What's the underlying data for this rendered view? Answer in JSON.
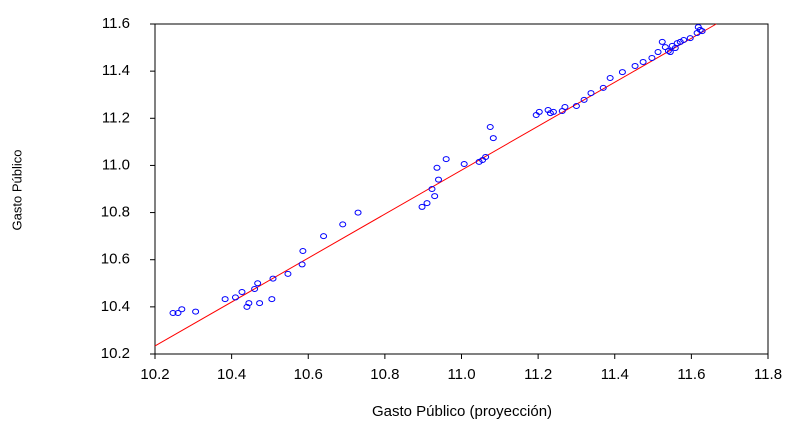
{
  "chart_data": {
    "type": "scatter",
    "x_label": "Gasto Público (proyección)",
    "y_label": "Gasto Público",
    "xlim": [
      10.2,
      11.8
    ],
    "ylim": [
      10.2,
      11.6
    ],
    "xticks": [
      10.2,
      10.4,
      10.6,
      10.8,
      {
        "value": 11,
        "label": "11.0"
      },
      11.2,
      11.4,
      11.6,
      11.8
    ],
    "yticks": [
      10.2,
      10.4,
      10.6,
      10.8,
      {
        "value": 11,
        "label": "11.0"
      },
      11.2,
      11.4,
      11.6
    ],
    "color": "#0000ff",
    "x": [
      10.247,
      10.26,
      10.27,
      10.306,
      10.383,
      10.41,
      10.427,
      10.44,
      10.445,
      10.46,
      10.468,
      10.473,
      10.505,
      10.508,
      10.547,
      10.584,
      10.586,
      10.64,
      10.69,
      10.73,
      10.897,
      10.91,
      10.923,
      10.93,
      10.936,
      10.94,
      10.96,
      11.007,
      11.046,
      11.055,
      11.063,
      11.075,
      11.083,
      11.195,
      11.203,
      11.226,
      11.232,
      11.24,
      11.263,
      11.27,
      11.3,
      11.32,
      11.338,
      11.37,
      11.388,
      11.42,
      11.453,
      11.474,
      11.497,
      11.513,
      11.524,
      11.532,
      11.54,
      11.545,
      11.55,
      11.558,
      11.563,
      11.571,
      11.58,
      11.597,
      11.615,
      11.623,
      11.628,
      11.618
    ],
    "values": [
      10.374,
      10.374,
      10.39,
      10.38,
      10.433,
      10.44,
      10.463,
      10.4,
      10.416,
      10.476,
      10.5,
      10.416,
      10.433,
      10.52,
      10.54,
      10.58,
      10.637,
      10.7,
      10.75,
      10.8,
      10.824,
      10.84,
      10.9,
      10.87,
      10.99,
      10.94,
      11.027,
      11.006,
      11.015,
      11.023,
      11.036,
      11.163,
      11.116,
      11.214,
      11.227,
      11.235,
      11.222,
      11.227,
      11.231,
      11.248,
      11.252,
      11.278,
      11.307,
      11.329,
      11.371,
      11.396,
      11.422,
      11.439,
      11.456,
      11.481,
      11.524,
      11.502,
      11.486,
      11.481,
      11.507,
      11.498,
      11.519,
      11.524,
      11.532,
      11.54,
      11.562,
      11.575,
      11.57,
      11.587
    ],
    "fit_line": {
      "color": "#ff0000",
      "x": [
        10.2,
        11.665
      ],
      "values": [
        10.234,
        11.6
      ]
    }
  }
}
